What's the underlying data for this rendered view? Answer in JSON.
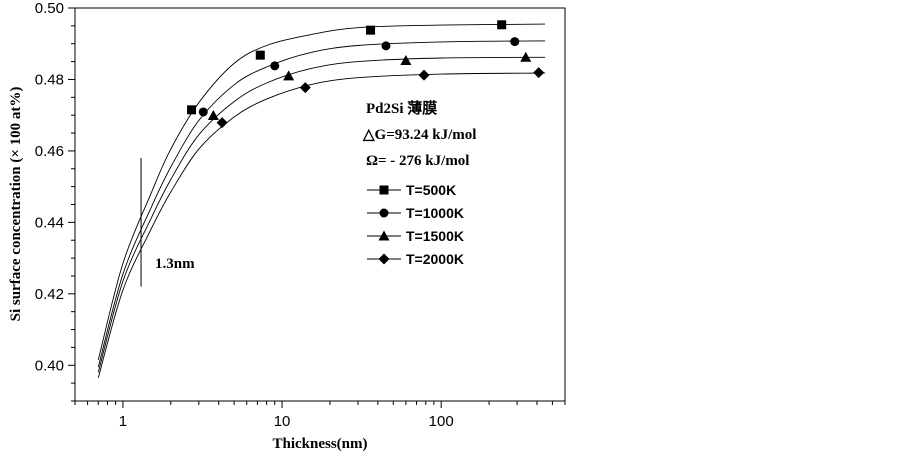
{
  "chart_data": {
    "type": "scatter",
    "title": "",
    "xlabel": "Thickness(nm)",
    "ylabel": "Si surface concentration (× 100 at%)",
    "xscale": "log",
    "xlim": [
      0.5,
      600
    ],
    "ylim": [
      0.39,
      0.5
    ],
    "x_ticks": [
      1,
      10,
      100
    ],
    "x_tick_labels": [
      "1",
      "10",
      "100"
    ],
    "y_ticks": [
      0.4,
      0.42,
      0.44,
      0.46,
      0.48,
      0.5
    ],
    "y_tick_labels": [
      "0.40",
      "0.42",
      "0.44",
      "0.46",
      "0.48",
      "0.50"
    ],
    "grid": false,
    "legend_position": "center-right",
    "series": [
      {
        "name": "T=500K",
        "marker": "square",
        "color": "#000000",
        "points": [
          [
            2.7,
            0.4715
          ],
          [
            7.3,
            0.4868
          ],
          [
            36,
            0.4938
          ],
          [
            240,
            0.4953
          ]
        ],
        "fit_curve": [
          [
            0.7,
            0.4015
          ],
          [
            1.0,
            0.4285
          ],
          [
            1.5,
            0.448
          ],
          [
            2.0,
            0.4605
          ],
          [
            3.0,
            0.4735
          ],
          [
            5.0,
            0.4845
          ],
          [
            8.0,
            0.4895
          ],
          [
            15.0,
            0.4925
          ],
          [
            30.0,
            0.4945
          ],
          [
            100.0,
            0.4952
          ],
          [
            450.0,
            0.4955
          ]
        ]
      },
      {
        "name": "T=1000K",
        "marker": "circle",
        "color": "#000000",
        "points": [
          [
            3.2,
            0.4709
          ],
          [
            9.0,
            0.4838
          ],
          [
            45,
            0.4894
          ],
          [
            290,
            0.4906
          ]
        ],
        "fit_curve": [
          [
            0.7,
            0.3995
          ],
          [
            1.0,
            0.4255
          ],
          [
            1.5,
            0.444
          ],
          [
            2.0,
            0.4555
          ],
          [
            3.0,
            0.4685
          ],
          [
            5.0,
            0.4785
          ],
          [
            8.0,
            0.4835
          ],
          [
            15.0,
            0.4875
          ],
          [
            30.0,
            0.4895
          ],
          [
            100.0,
            0.4905
          ],
          [
            450.0,
            0.4908
          ]
        ]
      },
      {
        "name": "T=1500K",
        "marker": "triangle",
        "color": "#000000",
        "points": [
          [
            3.7,
            0.4699
          ],
          [
            11,
            0.481
          ],
          [
            60,
            0.4853
          ],
          [
            340,
            0.4862
          ]
        ],
        "fit_curve": [
          [
            0.7,
            0.398
          ],
          [
            1.0,
            0.4235
          ],
          [
            1.5,
            0.441
          ],
          [
            2.0,
            0.452
          ],
          [
            3.0,
            0.4645
          ],
          [
            5.0,
            0.4738
          ],
          [
            8.0,
            0.479
          ],
          [
            15.0,
            0.483
          ],
          [
            30.0,
            0.485
          ],
          [
            100.0,
            0.486
          ],
          [
            450.0,
            0.4862
          ]
        ]
      },
      {
        "name": "T=2000K",
        "marker": "diamond",
        "color": "#000000",
        "points": [
          [
            4.2,
            0.4679
          ],
          [
            14,
            0.4777
          ],
          [
            78,
            0.4812
          ],
          [
            410,
            0.4819
          ]
        ],
        "fit_curve": [
          [
            0.7,
            0.3965
          ],
          [
            1.0,
            0.421
          ],
          [
            1.5,
            0.438
          ],
          [
            2.0,
            0.4485
          ],
          [
            3.0,
            0.4605
          ],
          [
            5.0,
            0.4695
          ],
          [
            8.0,
            0.4745
          ],
          [
            15.0,
            0.4785
          ],
          [
            30.0,
            0.4805
          ],
          [
            100.0,
            0.4815
          ],
          [
            450.0,
            0.4818
          ]
        ]
      }
    ],
    "annotations": {
      "material": "Pd2Si 薄膜",
      "delta_g": "△G=93.24 kJ/mol",
      "omega": "Ω=  - 276 kJ/mol",
      "thickness_marker": "1.3nm",
      "thickness_marker_x": 1.3,
      "thickness_marker_y_range": [
        0.422,
        0.458
      ]
    }
  }
}
